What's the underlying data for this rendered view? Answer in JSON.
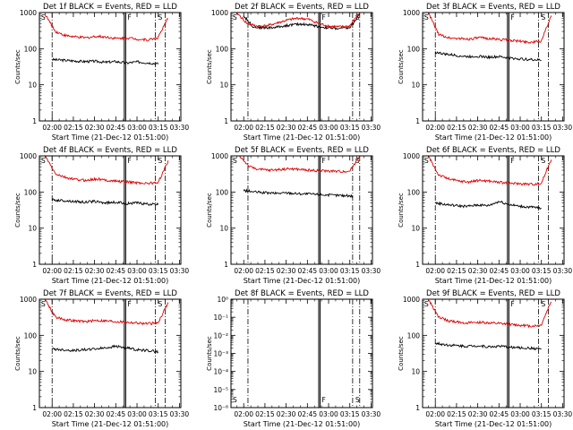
{
  "chart_data": [
    {
      "type": "line",
      "title": "Det 1f BLACK = Events, RED = LLD",
      "xlabel": "Start Time (21-Dec-12 01:51:00)",
      "ylabel": "Counts/sec",
      "y_scale": "log",
      "ylim_exp": [
        0,
        3
      ],
      "xlim": [
        "01:51",
        "03:31"
      ],
      "x_ticks": [
        "02:00",
        "02:15",
        "02:30",
        "02:45",
        "03:00",
        "03:15",
        "03:30"
      ],
      "y_tick_labels": [
        "1",
        "10",
        "100",
        "1000"
      ],
      "saa_labels": [
        "S",
        "S"
      ],
      "flare_label": "F",
      "markers_dashdot": [
        "02:00",
        "03:13",
        "03:20"
      ],
      "markers_solid": [
        "02:51",
        "02:52"
      ],
      "series": [
        {
          "color": "#000000",
          "desc": "events",
          "approx_start": "02:00",
          "approx_end": "03:15",
          "values": [
            50,
            48,
            46,
            44,
            45,
            42,
            44,
            40,
            43,
            41,
            38
          ]
        },
        {
          "color": "#dd0000",
          "desc": "lld",
          "approx_start": "01:55",
          "approx_end": "03:22",
          "values": [
            900,
            300,
            230,
            210,
            200,
            220,
            210,
            190,
            200,
            185,
            175,
            200,
            700
          ]
        }
      ]
    },
    {
      "type": "line",
      "title": "Det 2f BLACK = Events, RED = LLD",
      "xlabel": "Start Time (21-Dec-12 01:51:00)",
      "ylabel": "Counts/sec",
      "y_scale": "log",
      "ylim_exp": [
        0,
        3
      ],
      "xlim": [
        "01:51",
        "03:31"
      ],
      "x_ticks": [
        "02:00",
        "02:15",
        "02:30",
        "02:45",
        "03:00",
        "03:15",
        "03:30"
      ],
      "y_tick_labels": [
        "1",
        "10",
        "100",
        "1000"
      ],
      "saa_labels": [
        "S",
        "S"
      ],
      "flare_label": "F",
      "markers_dashdot": [
        "02:03",
        "03:17",
        "03:22"
      ],
      "markers_solid": [
        "02:53",
        "02:54"
      ],
      "series": [
        {
          "color": "#000000",
          "desc": "events",
          "approx_start": "02:00",
          "approx_end": "03:22",
          "values": [
            800,
            400,
            380,
            380,
            420,
            460,
            480,
            450,
            400,
            370,
            360,
            380,
            900
          ]
        },
        {
          "color": "#dd0000",
          "desc": "lld",
          "approx_start": "01:55",
          "approx_end": "03:22",
          "values": [
            1000,
            500,
            420,
            430,
            520,
            620,
            700,
            650,
            500,
            420,
            400,
            420,
            1000
          ]
        }
      ]
    },
    {
      "type": "line",
      "title": "Det 3f BLACK = Events, RED = LLD",
      "xlabel": "Start Time (21-Dec-12 01:51:00)",
      "ylabel": "Counts/sec",
      "y_scale": "log",
      "ylim_exp": [
        0,
        3
      ],
      "xlim": [
        "01:51",
        "03:31"
      ],
      "x_ticks": [
        "02:00",
        "02:15",
        "02:30",
        "02:45",
        "03:00",
        "03:15",
        "03:30"
      ],
      "y_tick_labels": [
        "1",
        "10",
        "100",
        "1000"
      ],
      "saa_labels": [
        "S",
        "S"
      ],
      "flare_label": "F",
      "markers_dashdot": [
        "02:00",
        "03:13",
        "03:20"
      ],
      "markers_solid": [
        "02:51",
        "02:52"
      ],
      "series": [
        {
          "color": "#000000",
          "desc": "events",
          "approx_start": "02:00",
          "approx_end": "03:15",
          "values": [
            80,
            70,
            65,
            60,
            62,
            58,
            60,
            55,
            52,
            50,
            48
          ]
        },
        {
          "color": "#dd0000",
          "desc": "lld",
          "approx_start": "01:55",
          "approx_end": "03:22",
          "values": [
            1000,
            250,
            200,
            190,
            185,
            200,
            190,
            180,
            170,
            160,
            150,
            160,
            800
          ]
        }
      ]
    },
    {
      "type": "line",
      "title": "Det 4f BLACK = Events, RED = LLD",
      "xlabel": "Start Time (21-Dec-12 01:51:00)",
      "ylabel": "Counts/sec",
      "y_scale": "log",
      "ylim_exp": [
        0,
        3
      ],
      "xlim": [
        "01:51",
        "03:31"
      ],
      "x_ticks": [
        "02:00",
        "02:15",
        "02:30",
        "02:45",
        "03:00",
        "03:15",
        "03:30"
      ],
      "y_tick_labels": [
        "1",
        "10",
        "100",
        "1000"
      ],
      "saa_labels": [
        "S",
        "S"
      ],
      "flare_label": "F",
      "markers_dashdot": [
        "02:00",
        "03:13",
        "03:20"
      ],
      "markers_solid": [
        "02:51",
        "02:52"
      ],
      "series": [
        {
          "color": "#000000",
          "desc": "events",
          "approx_start": "02:00",
          "approx_end": "03:15",
          "values": [
            60,
            58,
            55,
            52,
            55,
            50,
            52,
            48,
            50,
            46,
            45
          ]
        },
        {
          "color": "#dd0000",
          "desc": "lld",
          "approx_start": "01:55",
          "approx_end": "03:22",
          "values": [
            1000,
            320,
            250,
            220,
            210,
            230,
            210,
            200,
            190,
            180,
            175,
            180,
            700
          ]
        }
      ]
    },
    {
      "type": "line",
      "title": "Det 5f BLACK = Events, RED = LLD",
      "xlabel": "Start Time (21-Dec-12 01:51:00)",
      "ylabel": "Counts/sec",
      "y_scale": "log",
      "ylim_exp": [
        0,
        3
      ],
      "xlim": [
        "01:51",
        "03:31"
      ],
      "x_ticks": [
        "02:00",
        "02:15",
        "02:30",
        "02:45",
        "03:00",
        "03:15",
        "03:30"
      ],
      "y_tick_labels": [
        "1",
        "10",
        "100",
        "1000"
      ],
      "saa_labels": [
        "S",
        "S"
      ],
      "flare_label": "F",
      "markers_dashdot": [
        "02:03",
        "03:17",
        "03:22"
      ],
      "markers_solid": [
        "02:53",
        "02:54"
      ],
      "series": [
        {
          "color": "#000000",
          "desc": "events",
          "approx_start": "02:00",
          "approx_end": "03:17",
          "values": [
            110,
            100,
            95,
            92,
            95,
            90,
            88,
            85,
            82,
            80,
            78
          ]
        },
        {
          "color": "#dd0000",
          "desc": "lld",
          "approx_start": "01:57",
          "approx_end": "03:22",
          "values": [
            1000,
            500,
            420,
            400,
            420,
            440,
            420,
            400,
            390,
            380,
            370,
            380,
            1000
          ]
        }
      ]
    },
    {
      "type": "line",
      "title": "Det 6f BLACK = Events, RED = LLD",
      "xlabel": "Start Time (21-Dec-12 01:51:00)",
      "ylabel": "Counts/sec",
      "y_scale": "log",
      "ylim_exp": [
        0,
        3
      ],
      "xlim": [
        "01:51",
        "03:31"
      ],
      "x_ticks": [
        "02:00",
        "02:15",
        "02:30",
        "02:45",
        "03:00",
        "03:15",
        "03:30"
      ],
      "y_tick_labels": [
        "1",
        "10",
        "100",
        "1000"
      ],
      "saa_labels": [
        "S",
        "S"
      ],
      "flare_label": "F",
      "markers_dashdot": [
        "02:00",
        "03:13",
        "03:20"
      ],
      "markers_solid": [
        "02:51",
        "02:52"
      ],
      "series": [
        {
          "color": "#000000",
          "desc": "events",
          "approx_start": "02:00",
          "approx_end": "03:15",
          "values": [
            50,
            45,
            42,
            40,
            44,
            42,
            55,
            45,
            40,
            38,
            36
          ]
        },
        {
          "color": "#dd0000",
          "desc": "lld",
          "approx_start": "01:55",
          "approx_end": "03:22",
          "values": [
            1000,
            300,
            230,
            200,
            190,
            210,
            200,
            185,
            175,
            170,
            165,
            170,
            800
          ]
        }
      ]
    },
    {
      "type": "line",
      "title": "Det 7f BLACK = Events, RED = LLD",
      "xlabel": "Start Time (21-Dec-12 01:51:00)",
      "ylabel": "Counts/sec",
      "y_scale": "log",
      "ylim_exp": [
        0,
        3
      ],
      "xlim": [
        "01:51",
        "03:31"
      ],
      "x_ticks": [
        "02:00",
        "02:15",
        "02:30",
        "02:45",
        "03:00",
        "03:15",
        "03:30"
      ],
      "y_tick_labels": [
        "1",
        "10",
        "100",
        "1000"
      ],
      "saa_labels": [
        "S",
        "S"
      ],
      "flare_label": "F",
      "markers_dashdot": [
        "02:00",
        "03:13",
        "03:20"
      ],
      "markers_solid": [
        "02:51",
        "02:52"
      ],
      "series": [
        {
          "color": "#000000",
          "desc": "events",
          "approx_start": "02:00",
          "approx_end": "03:15",
          "values": [
            42,
            40,
            38,
            40,
            42,
            45,
            50,
            45,
            40,
            38,
            35
          ]
        },
        {
          "color": "#dd0000",
          "desc": "lld",
          "approx_start": "01:55",
          "approx_end": "03:22",
          "values": [
            1000,
            320,
            270,
            250,
            240,
            260,
            250,
            240,
            230,
            220,
            210,
            220,
            800
          ]
        }
      ]
    },
    {
      "type": "line",
      "title": "Det 8f BLACK = Events, RED = LLD",
      "xlabel": "Start Time (21-Dec-12 01:51:00)",
      "ylabel": "Counts/sec",
      "y_scale": "log",
      "ylim_exp": [
        -6,
        0
      ],
      "xlim": [
        "01:51",
        "03:31"
      ],
      "x_ticks": [
        "02:00",
        "02:15",
        "02:30",
        "02:45",
        "03:00",
        "03:15",
        "03:30"
      ],
      "y_tick_labels": [
        "10⁻⁶",
        "10⁻⁵",
        "10⁻⁴",
        "10⁻³",
        "10⁻²",
        "10⁻¹",
        "10⁰"
      ],
      "saa_labels": [
        "S",
        "S"
      ],
      "flare_label": "F",
      "markers_dashdot": [
        "02:03",
        "03:17",
        "03:22"
      ],
      "markers_solid": [
        "02:53",
        "02:54"
      ],
      "series": []
    },
    {
      "type": "line",
      "title": "Det 9f BLACK = Events, RED = LLD",
      "xlabel": "Start Time (21-Dec-12 01:51:00)",
      "ylabel": "Counts/sec",
      "y_scale": "log",
      "ylim_exp": [
        0,
        3
      ],
      "xlim": [
        "01:51",
        "03:31"
      ],
      "x_ticks": [
        "02:00",
        "02:15",
        "02:30",
        "02:45",
        "03:00",
        "03:15",
        "03:30"
      ],
      "y_tick_labels": [
        "1",
        "10",
        "100",
        "1000"
      ],
      "saa_labels": [
        "S",
        "S"
      ],
      "flare_label": "F",
      "markers_dashdot": [
        "02:00",
        "03:13",
        "03:20"
      ],
      "markers_solid": [
        "02:51",
        "02:52"
      ],
      "series": [
        {
          "color": "#000000",
          "desc": "events",
          "approx_start": "02:00",
          "approx_end": "03:15",
          "values": [
            60,
            55,
            52,
            50,
            52,
            48,
            50,
            47,
            45,
            44,
            42
          ]
        },
        {
          "color": "#dd0000",
          "desc": "lld",
          "approx_start": "01:55",
          "approx_end": "03:22",
          "values": [
            1000,
            320,
            250,
            230,
            220,
            230,
            220,
            210,
            200,
            190,
            180,
            190,
            900
          ]
        }
      ]
    }
  ]
}
